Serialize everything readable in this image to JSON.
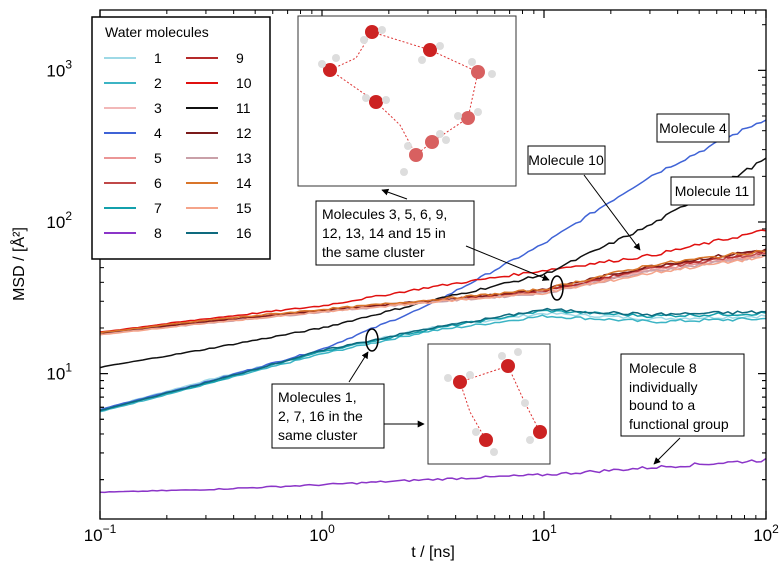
{
  "chart_data": {
    "type": "line",
    "xlabel": "t / [ns]",
    "ylabel": "MSD / [Å²]",
    "x_scale": "log",
    "y_scale": "log",
    "xlim": [
      0.1,
      100
    ],
    "ylim": [
      1.1,
      2500
    ],
    "x_ticks": [
      {
        "value": 0.1,
        "base": "10",
        "exp": "−1"
      },
      {
        "value": 1,
        "base": "10",
        "exp": "0"
      },
      {
        "value": 10,
        "base": "10",
        "exp": "1"
      },
      {
        "value": 100,
        "base": "10",
        "exp": "2"
      }
    ],
    "y_ticks": [
      {
        "value": 10,
        "base": "10",
        "exp": "1"
      },
      {
        "value": 100,
        "base": "10",
        "exp": "2"
      },
      {
        "value": 1000,
        "base": "10",
        "exp": "3"
      }
    ],
    "legend": {
      "title": "Water molecules",
      "placement": "top-left",
      "columns": 2
    },
    "series": [
      {
        "name": "1",
        "color": "#9ed9e6",
        "x": [
          0.1,
          0.3,
          1,
          3,
          10,
          30,
          100
        ],
        "y": [
          5.8,
          9,
          14,
          20,
          25,
          23,
          24
        ]
      },
      {
        "name": "2",
        "color": "#3cb4c4",
        "x": [
          0.1,
          0.3,
          1,
          3,
          10,
          30,
          100
        ],
        "y": [
          5.6,
          8.5,
          13.5,
          19,
          24,
          22,
          23
        ]
      },
      {
        "name": "3",
        "color": "#f2b8b8",
        "x": [
          0.1,
          0.3,
          1,
          3,
          10,
          30,
          100
        ],
        "y": [
          18.5,
          22,
          26,
          30,
          35,
          48,
          62
        ]
      },
      {
        "name": "4",
        "color": "#3f63d6",
        "x": [
          0.1,
          0.3,
          1,
          3,
          10,
          30,
          100
        ],
        "y": [
          5.8,
          8.8,
          14.5,
          28,
          72,
          200,
          480
        ]
      },
      {
        "name": "5",
        "color": "#eb9696",
        "x": [
          0.1,
          0.3,
          1,
          3,
          10,
          30,
          100
        ],
        "y": [
          18.3,
          22,
          26,
          30,
          35,
          48,
          61
        ]
      },
      {
        "name": "6",
        "color": "#c04848",
        "x": [
          0.1,
          0.3,
          1,
          3,
          10,
          30,
          100
        ],
        "y": [
          18.2,
          22,
          26,
          30,
          35,
          49,
          63
        ]
      },
      {
        "name": "7",
        "color": "#13a0ac",
        "x": [
          0.1,
          0.3,
          1,
          3,
          10,
          30,
          100
        ],
        "y": [
          5.7,
          8.6,
          14,
          19.5,
          26,
          24,
          25
        ]
      },
      {
        "name": "8",
        "color": "#8b35c8",
        "x": [
          0.1,
          0.3,
          1,
          3,
          10,
          30,
          100
        ],
        "y": [
          1.65,
          1.72,
          1.85,
          2.0,
          2.15,
          2.4,
          2.7
        ]
      },
      {
        "name": "9",
        "color": "#b52a2a",
        "x": [
          0.1,
          0.3,
          1,
          3,
          10,
          30,
          100
        ],
        "y": [
          18.4,
          22,
          26,
          30,
          35,
          50,
          64
        ]
      },
      {
        "name": "10",
        "color": "#e0100f",
        "x": [
          0.1,
          0.3,
          1,
          3,
          10,
          30,
          100
        ],
        "y": [
          18.8,
          23,
          28,
          37,
          48,
          60,
          88
        ]
      },
      {
        "name": "11",
        "color": "#111111",
        "x": [
          0.1,
          0.3,
          1,
          3,
          10,
          30,
          100
        ],
        "y": [
          11,
          14.5,
          20,
          30,
          45,
          95,
          260
        ]
      },
      {
        "name": "12",
        "color": "#7b1a1a",
        "x": [
          0.1,
          0.3,
          1,
          3,
          10,
          30,
          100
        ],
        "y": [
          18.4,
          22,
          26,
          30,
          36,
          51,
          66
        ]
      },
      {
        "name": "13",
        "color": "#c9a0a8",
        "x": [
          0.1,
          0.3,
          1,
          3,
          10,
          30,
          100
        ],
        "y": [
          18.1,
          21.5,
          25.5,
          29.5,
          34,
          47,
          60
        ]
      },
      {
        "name": "14",
        "color": "#d9752a",
        "x": [
          0.1,
          0.3,
          1,
          3,
          10,
          30,
          100
        ],
        "y": [
          18.6,
          22.5,
          26.5,
          30.5,
          36,
          52,
          65
        ]
      },
      {
        "name": "15",
        "color": "#f5a48a",
        "x": [
          0.1,
          0.3,
          1,
          3,
          10,
          30,
          100
        ],
        "y": [
          18.0,
          21.5,
          25.5,
          29.5,
          34,
          46,
          59
        ]
      },
      {
        "name": "16",
        "color": "#0e6a7e",
        "x": [
          0.1,
          0.3,
          1,
          3,
          10,
          30,
          100
        ],
        "y": [
          5.7,
          8.7,
          14.2,
          19.8,
          26.5,
          24.5,
          25.5
        ]
      }
    ],
    "annotations": [
      {
        "id": "mol4",
        "text": [
          "Molecule 4"
        ]
      },
      {
        "id": "mol10",
        "text": [
          "Molecule 10"
        ]
      },
      {
        "id": "mol11",
        "text": [
          "Molecule 11"
        ]
      },
      {
        "id": "cluster_a",
        "text": [
          "Molecules 3, 5, 6, 9,",
          "12, 13, 14 and 15 in",
          "the same cluster"
        ]
      },
      {
        "id": "cluster_b",
        "text": [
          "Molecules 1,",
          "2, 7, 16 in the",
          "same cluster"
        ]
      },
      {
        "id": "mol8",
        "text": [
          "Molecule 8",
          "individually",
          "bound to a",
          "functional group"
        ]
      }
    ]
  }
}
